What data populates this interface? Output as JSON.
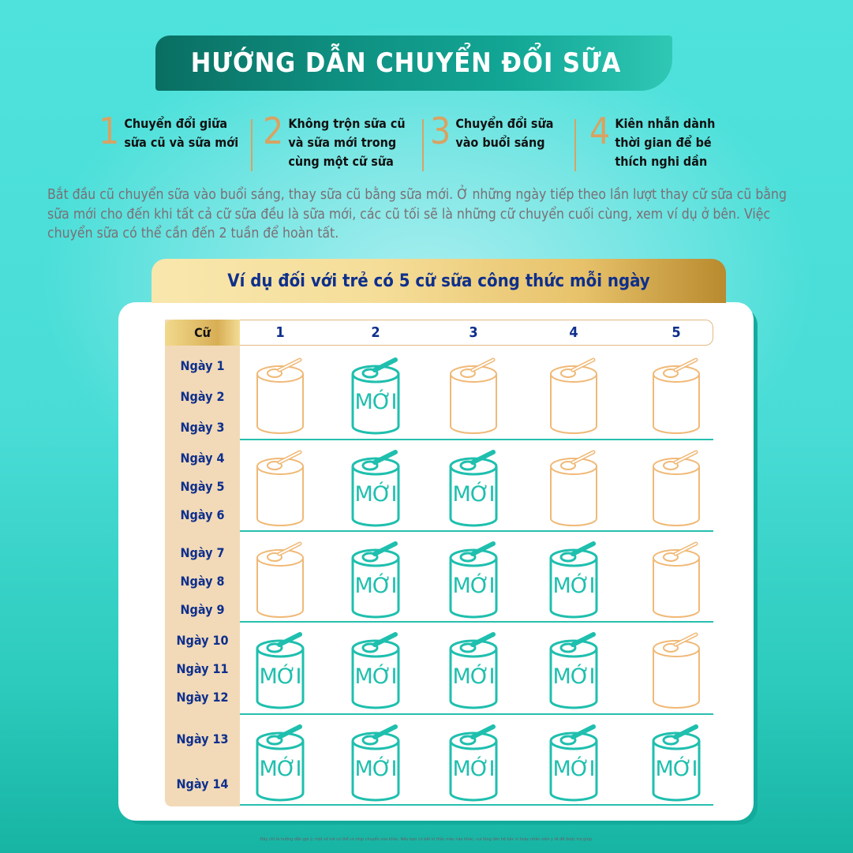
{
  "title": "HƯỚNG DẪN CHUYỂN ĐỔI SỮA",
  "steps": [
    {
      "num": "1",
      "text": "Chuyển đổi giữa\nsữa cũ và sữa mới"
    },
    {
      "num": "2",
      "text": "Không trộn sữa cũ\nvà sữa mới trong\ncùng một cữ sữa"
    },
    {
      "num": "3",
      "text": "Chuyển đổi sữa\nvào buổi sáng"
    },
    {
      "num": "4",
      "text": "Kiên nhẫn dành\nthời gian để bé\nthích nghi dần"
    }
  ],
  "intro": "Bắt đầu cũ chuyển sữa vào buổi sáng, thay sữa cũ bằng sữa mới. Ở những ngày tiếp theo lần lượt thay cữ sữa cũ bằng sữa mới cho đến khi tất cả cữ sữa đều là sữa mới, các cũ tối sẽ là những cữ chuyển cuối cùng, xem ví dụ ở bên. Việc chuyển sữa có thể cần đến 2 tuần để hoàn tất.",
  "example_title": "Ví dụ đối với trẻ có 5 cữ sữa công thức mỗi ngày",
  "table": {
    "corner": "Cữ",
    "columns": [
      "1",
      "2",
      "3",
      "4",
      "5"
    ],
    "new_label": "MỚI",
    "bands": [
      {
        "days": [
          "Ngày 1",
          "Ngày 2",
          "Ngày 3"
        ],
        "new": [
          false,
          true,
          false,
          false,
          false
        ]
      },
      {
        "days": [
          "Ngày 4",
          "Ngày 5",
          "Ngày 6"
        ],
        "new": [
          false,
          true,
          true,
          false,
          false
        ]
      },
      {
        "days": [
          "Ngày 7",
          "Ngày 8",
          "Ngày 9"
        ],
        "new": [
          false,
          true,
          true,
          true,
          false
        ]
      },
      {
        "days": [
          "Ngày 10",
          "Ngày 11",
          "Ngày 12"
        ],
        "new": [
          true,
          true,
          true,
          true,
          false
        ]
      },
      {
        "days": [
          "Ngày 13",
          "Ngày 14"
        ],
        "new": [
          true,
          true,
          true,
          true,
          true
        ]
      }
    ]
  },
  "colors": {
    "old": "#f0b977",
    "new": "#1fbfae",
    "text_blue": "#0e2f8c"
  },
  "footnote": "Đây chỉ là hướng dẫn gợi ý, một số trẻ có thể có nhịp chuyển sữa khác. Nếu bạn có bất kì thắc mắc nào khác, vui lòng liên hệ bác sĩ hoặc nhân viên y tế để được trợ giúp."
}
